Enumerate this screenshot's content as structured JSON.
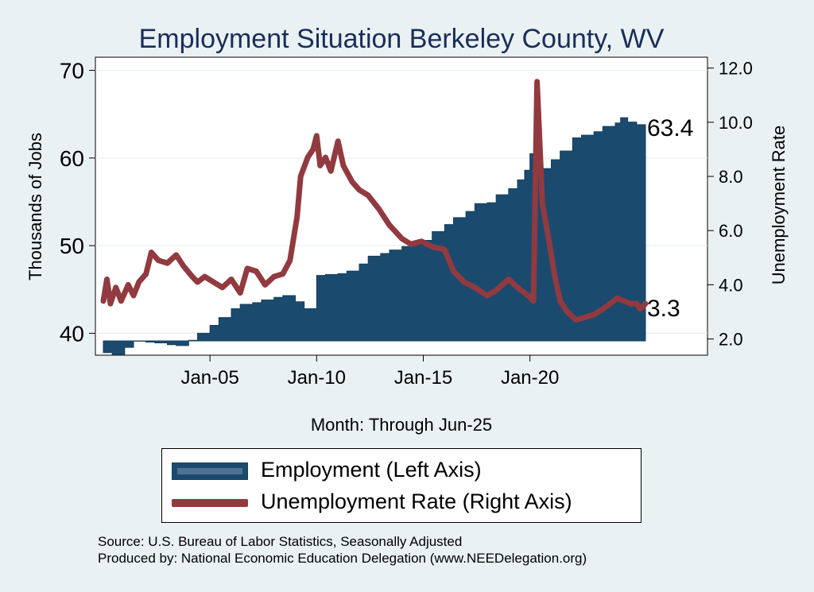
{
  "chart_data": {
    "type": "area+line",
    "title": "Employment Situation Berkeley  County, WV",
    "xlabel": "Month: Through Jun-25",
    "ylabel_left": "Thousands of Jobs",
    "ylabel_right": "Unemployment Rate",
    "x_ticks": [
      "Jan-05",
      "Jan-10",
      "Jan-15",
      "Jan-20"
    ],
    "x_range": [
      "2000-01",
      "2025-06"
    ],
    "y_left_ticks": [
      40,
      50,
      60,
      70
    ],
    "y_left_range": [
      37.5,
      71.5
    ],
    "y_right_ticks": [
      "2.0",
      "4.0",
      "6.0",
      "8.0",
      "10.0",
      "12.0"
    ],
    "y_right_range": [
      1.4,
      12.4
    ],
    "grid": "horizontal-left-axis",
    "series": [
      {
        "name": "Employment (Left Axis)",
        "axis": "left",
        "kind": "area",
        "color": "#1b4a6f",
        "points": [
          [
            "2000-01",
            37.8
          ],
          [
            "2000-06",
            37.6
          ],
          [
            "2001-01",
            38.4
          ],
          [
            "2001-06",
            39.1
          ],
          [
            "2002-01",
            39.0
          ],
          [
            "2002-06",
            38.9
          ],
          [
            "2003-01",
            38.7
          ],
          [
            "2003-06",
            38.6
          ],
          [
            "2004-01",
            39.2
          ],
          [
            "2004-06",
            40.0
          ],
          [
            "2005-01",
            40.9
          ],
          [
            "2005-06",
            41.8
          ],
          [
            "2006-01",
            42.8
          ],
          [
            "2006-06",
            43.3
          ],
          [
            "2007-01",
            43.5
          ],
          [
            "2007-06",
            43.8
          ],
          [
            "2008-01",
            44.1
          ],
          [
            "2008-06",
            44.3
          ],
          [
            "2009-01",
            43.6
          ],
          [
            "2009-06",
            42.8
          ],
          [
            "2009-12",
            42.8
          ],
          [
            "2010-01",
            46.6
          ],
          [
            "2010-06",
            46.7
          ],
          [
            "2011-01",
            46.8
          ],
          [
            "2011-06",
            47.1
          ],
          [
            "2012-01",
            47.9
          ],
          [
            "2012-06",
            48.8
          ],
          [
            "2013-01",
            49.1
          ],
          [
            "2013-06",
            49.5
          ],
          [
            "2014-01",
            49.9
          ],
          [
            "2014-06",
            50.1
          ],
          [
            "2015-01",
            50.6
          ],
          [
            "2015-06",
            51.6
          ],
          [
            "2016-01",
            52.4
          ],
          [
            "2016-06",
            53.2
          ],
          [
            "2017-01",
            53.9
          ],
          [
            "2017-06",
            54.8
          ],
          [
            "2018-01",
            54.9
          ],
          [
            "2018-06",
            55.8
          ],
          [
            "2019-01",
            56.5
          ],
          [
            "2019-06",
            57.5
          ],
          [
            "2019-10",
            58.6
          ],
          [
            "2020-01",
            60.5
          ],
          [
            "2020-04",
            58.5
          ],
          [
            "2020-07",
            58.8
          ],
          [
            "2021-01",
            59.8
          ],
          [
            "2021-06",
            60.8
          ],
          [
            "2022-01",
            62.3
          ],
          [
            "2022-06",
            62.6
          ],
          [
            "2023-01",
            63.0
          ],
          [
            "2023-06",
            63.6
          ],
          [
            "2024-01",
            64.0
          ],
          [
            "2024-04",
            64.6
          ],
          [
            "2024-08",
            64.1
          ],
          [
            "2025-01",
            63.8
          ],
          [
            "2025-06",
            63.4
          ]
        ]
      },
      {
        "name": "Unemployment Rate (Right Axis)",
        "axis": "right",
        "kind": "line",
        "color": "#913a3f",
        "points": [
          [
            "2000-01",
            3.4
          ],
          [
            "2000-03",
            4.2
          ],
          [
            "2000-05",
            3.3
          ],
          [
            "2000-08",
            3.9
          ],
          [
            "2000-11",
            3.4
          ],
          [
            "2001-03",
            4.0
          ],
          [
            "2001-06",
            3.6
          ],
          [
            "2001-09",
            4.1
          ],
          [
            "2002-01",
            4.4
          ],
          [
            "2002-04",
            5.2
          ],
          [
            "2002-08",
            4.9
          ],
          [
            "2003-01",
            4.8
          ],
          [
            "2003-06",
            5.1
          ],
          [
            "2003-10",
            4.7
          ],
          [
            "2004-03",
            4.3
          ],
          [
            "2004-06",
            4.1
          ],
          [
            "2004-10",
            4.3
          ],
          [
            "2005-03",
            4.1
          ],
          [
            "2005-08",
            3.9
          ],
          [
            "2006-01",
            4.2
          ],
          [
            "2006-06",
            3.7
          ],
          [
            "2006-10",
            4.6
          ],
          [
            "2007-03",
            4.5
          ],
          [
            "2007-08",
            4.0
          ],
          [
            "2008-01",
            4.3
          ],
          [
            "2008-06",
            4.4
          ],
          [
            "2008-10",
            4.9
          ],
          [
            "2009-02",
            6.5
          ],
          [
            "2009-04",
            8.0
          ],
          [
            "2009-08",
            8.7
          ],
          [
            "2009-11",
            9.0
          ],
          [
            "2010-01",
            9.5
          ],
          [
            "2010-03",
            8.4
          ],
          [
            "2010-06",
            8.7
          ],
          [
            "2010-09",
            8.2
          ],
          [
            "2011-01",
            9.3
          ],
          [
            "2011-04",
            8.4
          ],
          [
            "2011-09",
            7.8
          ],
          [
            "2012-01",
            7.5
          ],
          [
            "2012-06",
            7.3
          ],
          [
            "2012-12",
            6.8
          ],
          [
            "2013-06",
            6.2
          ],
          [
            "2014-01",
            5.7
          ],
          [
            "2014-06",
            5.5
          ],
          [
            "2014-12",
            5.6
          ],
          [
            "2015-06",
            5.4
          ],
          [
            "2016-01",
            5.3
          ],
          [
            "2016-06",
            4.5
          ],
          [
            "2016-12",
            4.1
          ],
          [
            "2017-06",
            3.9
          ],
          [
            "2018-01",
            3.6
          ],
          [
            "2018-06",
            3.8
          ],
          [
            "2019-01",
            4.2
          ],
          [
            "2019-06",
            3.9
          ],
          [
            "2019-12",
            3.6
          ],
          [
            "2020-03",
            3.4
          ],
          [
            "2020-05",
            11.5
          ],
          [
            "2020-08",
            7.0
          ],
          [
            "2020-12",
            5.5
          ],
          [
            "2021-03",
            4.3
          ],
          [
            "2021-06",
            3.4
          ],
          [
            "2021-10",
            3.0
          ],
          [
            "2022-03",
            2.7
          ],
          [
            "2022-08",
            2.8
          ],
          [
            "2023-01",
            2.9
          ],
          [
            "2023-06",
            3.1
          ],
          [
            "2023-10",
            3.3
          ],
          [
            "2024-02",
            3.5
          ],
          [
            "2024-06",
            3.4
          ],
          [
            "2024-10",
            3.3
          ],
          [
            "2025-01",
            3.3
          ],
          [
            "2025-03",
            3.1
          ],
          [
            "2025-06",
            3.3
          ]
        ]
      }
    ],
    "end_labels": {
      "employment": "63.4",
      "unemployment": "3.3"
    },
    "legend": [
      {
        "label": "Employment (Left Axis)",
        "kind": "area"
      },
      {
        "label": "Unemployment Rate (Right Axis)",
        "kind": "line"
      }
    ],
    "legend_placement": "bottom"
  },
  "footer": {
    "source": "Source: U.S. Bureau of Labor Statistics, Seasonally Adjusted",
    "producer": "Produced by: National Economic Education Delegation (www.NEEDelegation.org)"
  },
  "colors": {
    "background": "#eaf1f3",
    "plot_area": "#ffffff",
    "employment_area": "#1b4a6f",
    "unemployment_line": "#913a3f",
    "title": "#1a2d5a"
  }
}
